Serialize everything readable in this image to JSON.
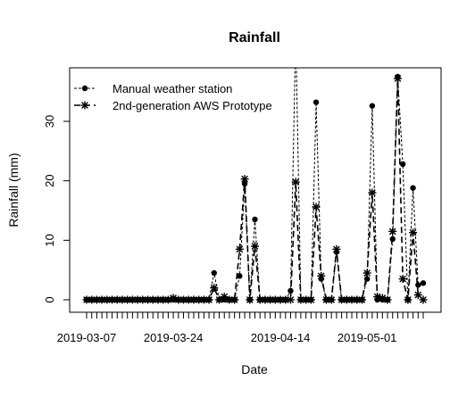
{
  "chart_data": {
    "type": "line",
    "title": "Rainfall",
    "xlabel": "Date",
    "ylabel": "Rainfall (mm)",
    "x_tick_labels": [
      "2019-03-07",
      "2019-03-24",
      "2019-04-14",
      "2019-05-01"
    ],
    "x_tick_label_dates": [
      "2019-03-07",
      "2019-03-24",
      "2019-04-14",
      "2019-05-01"
    ],
    "y_ticks": [
      0,
      10,
      20,
      30
    ],
    "ylim": [
      -1,
      38
    ],
    "xlim": [
      "2019-03-07",
      "2019-05-27"
    ],
    "grid": false,
    "legend_position": "top-left",
    "series": [
      {
        "name": "Manual weather station",
        "marker": "filled-circle",
        "line_style": "dashed",
        "color": "#000000",
        "points": [
          [
            "2019-03-07",
            0
          ],
          [
            "2019-03-08",
            0
          ],
          [
            "2019-03-09",
            0
          ],
          [
            "2019-03-10",
            0
          ],
          [
            "2019-03-11",
            0
          ],
          [
            "2019-03-12",
            0
          ],
          [
            "2019-03-13",
            0
          ],
          [
            "2019-03-14",
            0
          ],
          [
            "2019-03-15",
            0
          ],
          [
            "2019-03-16",
            0
          ],
          [
            "2019-03-17",
            0
          ],
          [
            "2019-03-18",
            0
          ],
          [
            "2019-03-19",
            0
          ],
          [
            "2019-03-20",
            0
          ],
          [
            "2019-03-21",
            0
          ],
          [
            "2019-03-22",
            0
          ],
          [
            "2019-03-23",
            0
          ],
          [
            "2019-03-24",
            0
          ],
          [
            "2019-03-25",
            0
          ],
          [
            "2019-03-26",
            0
          ],
          [
            "2019-03-27",
            0
          ],
          [
            "2019-03-28",
            0
          ],
          [
            "2019-03-29",
            0
          ],
          [
            "2019-03-30",
            0
          ],
          [
            "2019-03-31",
            0
          ],
          [
            "2019-04-01",
            4.5
          ],
          [
            "2019-04-02",
            0
          ],
          [
            "2019-04-03",
            0
          ],
          [
            "2019-04-04",
            0
          ],
          [
            "2019-04-05",
            0
          ],
          [
            "2019-04-06",
            4
          ],
          [
            "2019-04-07",
            19.5
          ],
          [
            "2019-04-08",
            0
          ],
          [
            "2019-04-09",
            13.5
          ],
          [
            "2019-04-10",
            0
          ],
          [
            "2019-04-11",
            0
          ],
          [
            "2019-04-12",
            0
          ],
          [
            "2019-04-13",
            0
          ],
          [
            "2019-04-14",
            0
          ],
          [
            "2019-04-15",
            0
          ],
          [
            "2019-04-16",
            1.5
          ],
          [
            "2019-04-17",
            45
          ],
          [
            "2019-04-18",
            0
          ],
          [
            "2019-04-19",
            0
          ],
          [
            "2019-04-20",
            0
          ],
          [
            "2019-04-21",
            33.2
          ],
          [
            "2019-04-22",
            3.5
          ],
          [
            "2019-04-23",
            0
          ],
          [
            "2019-04-24",
            0
          ],
          [
            "2019-04-25",
            8
          ],
          [
            "2019-04-26",
            0
          ],
          [
            "2019-04-27",
            0
          ],
          [
            "2019-04-28",
            0
          ],
          [
            "2019-04-29",
            0
          ],
          [
            "2019-04-30",
            0
          ],
          [
            "2019-05-01",
            3.5
          ],
          [
            "2019-05-02",
            32.6
          ],
          [
            "2019-05-03",
            0
          ],
          [
            "2019-05-04",
            0
          ],
          [
            "2019-05-05",
            0
          ],
          [
            "2019-05-06",
            10.2
          ],
          [
            "2019-05-07",
            37.5
          ],
          [
            "2019-05-08",
            22.8
          ],
          [
            "2019-05-09",
            0
          ],
          [
            "2019-05-10",
            18.8
          ],
          [
            "2019-05-11",
            2.5
          ],
          [
            "2019-05-12",
            2.8
          ]
        ]
      },
      {
        "name": "2nd-generation AWS Prototype",
        "marker": "asterisk",
        "line_style": "long-dash",
        "color": "#000000",
        "points": [
          [
            "2019-03-07",
            0
          ],
          [
            "2019-03-08",
            0
          ],
          [
            "2019-03-09",
            0
          ],
          [
            "2019-03-10",
            0
          ],
          [
            "2019-03-11",
            0
          ],
          [
            "2019-03-12",
            0
          ],
          [
            "2019-03-13",
            0
          ],
          [
            "2019-03-14",
            0
          ],
          [
            "2019-03-15",
            0
          ],
          [
            "2019-03-16",
            0
          ],
          [
            "2019-03-17",
            0
          ],
          [
            "2019-03-18",
            0
          ],
          [
            "2019-03-19",
            0
          ],
          [
            "2019-03-20",
            0
          ],
          [
            "2019-03-21",
            0
          ],
          [
            "2019-03-22",
            0
          ],
          [
            "2019-03-23",
            0
          ],
          [
            "2019-03-24",
            0.3
          ],
          [
            "2019-03-25",
            0
          ],
          [
            "2019-03-26",
            0
          ],
          [
            "2019-03-27",
            0
          ],
          [
            "2019-03-28",
            0
          ],
          [
            "2019-03-29",
            0
          ],
          [
            "2019-03-30",
            0
          ],
          [
            "2019-03-31",
            0
          ],
          [
            "2019-04-01",
            2
          ],
          [
            "2019-04-02",
            0
          ],
          [
            "2019-04-03",
            0.5
          ],
          [
            "2019-04-04",
            0
          ],
          [
            "2019-04-05",
            0
          ],
          [
            "2019-04-06",
            8.5
          ],
          [
            "2019-04-07",
            20.3
          ],
          [
            "2019-04-08",
            0
          ],
          [
            "2019-04-09",
            9
          ],
          [
            "2019-04-10",
            0
          ],
          [
            "2019-04-11",
            0
          ],
          [
            "2019-04-12",
            0
          ],
          [
            "2019-04-13",
            0
          ],
          [
            "2019-04-14",
            0
          ],
          [
            "2019-04-15",
            0
          ],
          [
            "2019-04-16",
            0
          ],
          [
            "2019-04-17",
            19.8
          ],
          [
            "2019-04-18",
            0
          ],
          [
            "2019-04-19",
            0
          ],
          [
            "2019-04-20",
            0
          ],
          [
            "2019-04-21",
            15.6
          ],
          [
            "2019-04-22",
            4
          ],
          [
            "2019-04-23",
            0
          ],
          [
            "2019-04-24",
            0
          ],
          [
            "2019-04-25",
            8.5
          ],
          [
            "2019-04-26",
            0
          ],
          [
            "2019-04-27",
            0
          ],
          [
            "2019-04-28",
            0
          ],
          [
            "2019-04-29",
            0
          ],
          [
            "2019-04-30",
            0
          ],
          [
            "2019-05-01",
            4.5
          ],
          [
            "2019-05-02",
            18
          ],
          [
            "2019-05-03",
            0.5
          ],
          [
            "2019-05-04",
            0.3
          ],
          [
            "2019-05-05",
            0
          ],
          [
            "2019-05-06",
            11.5
          ],
          [
            "2019-05-07",
            37.2
          ],
          [
            "2019-05-08",
            3.5
          ],
          [
            "2019-05-09",
            0
          ],
          [
            "2019-05-10",
            11.3
          ],
          [
            "2019-05-11",
            0.8
          ],
          [
            "2019-05-12",
            0
          ]
        ]
      }
    ]
  }
}
